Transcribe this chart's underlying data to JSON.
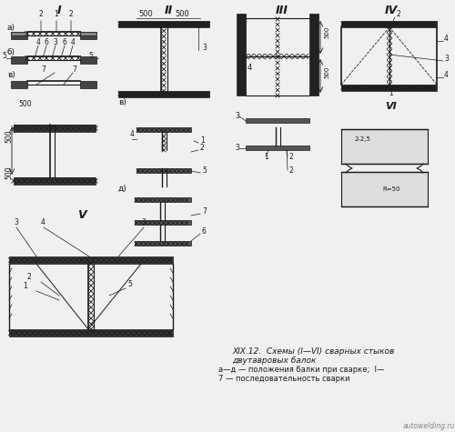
{
  "bg_color": "#f0f0f0",
  "line_color": "#1a1a1a",
  "title": "XIX.12.  Схемы (I—VI) сварных стыков\nдвутавровых балок",
  "caption": "а—д — положения балки при сварке;  I—\n7 — последовательность сварки",
  "watermark": "autowelding.ru"
}
